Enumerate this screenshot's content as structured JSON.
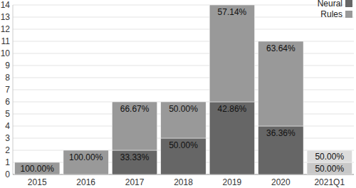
{
  "chart_data": {
    "type": "bar",
    "stacked": true,
    "grid": true,
    "legend": "top-right",
    "categories": [
      "2015",
      "2016",
      "2017",
      "2018",
      "2019",
      "2020",
      "2021Q1"
    ],
    "ylim": [
      0,
      14
    ],
    "yticks": [
      0,
      1,
      2,
      3,
      4,
      5,
      6,
      7,
      8,
      9,
      10,
      11,
      12,
      13,
      14
    ],
    "series": [
      {
        "name": "Neural",
        "color": "#666666",
        "colors": [
          "#666666",
          "#666666",
          "#666666",
          "#666666",
          "#666666",
          "#666666",
          "#c8c8c8"
        ],
        "values": [
          0,
          0,
          2,
          3,
          6,
          4,
          1
        ],
        "share_labels": [
          null,
          null,
          "33.33%",
          "50.00%",
          "42.86%",
          "36.36%",
          "50.00%"
        ]
      },
      {
        "name": "Rules",
        "color": "#999999",
        "colors": [
          "#999999",
          "#999999",
          "#999999",
          "#999999",
          "#999999",
          "#999999",
          "#dcdcdc"
        ],
        "values": [
          1,
          2,
          4,
          3,
          8,
          7,
          1
        ],
        "share_labels": [
          "100.00%",
          "100.00%",
          "66.67%",
          "50.00%",
          "57.14%",
          "63.64%",
          "50.00%"
        ]
      }
    ]
  }
}
